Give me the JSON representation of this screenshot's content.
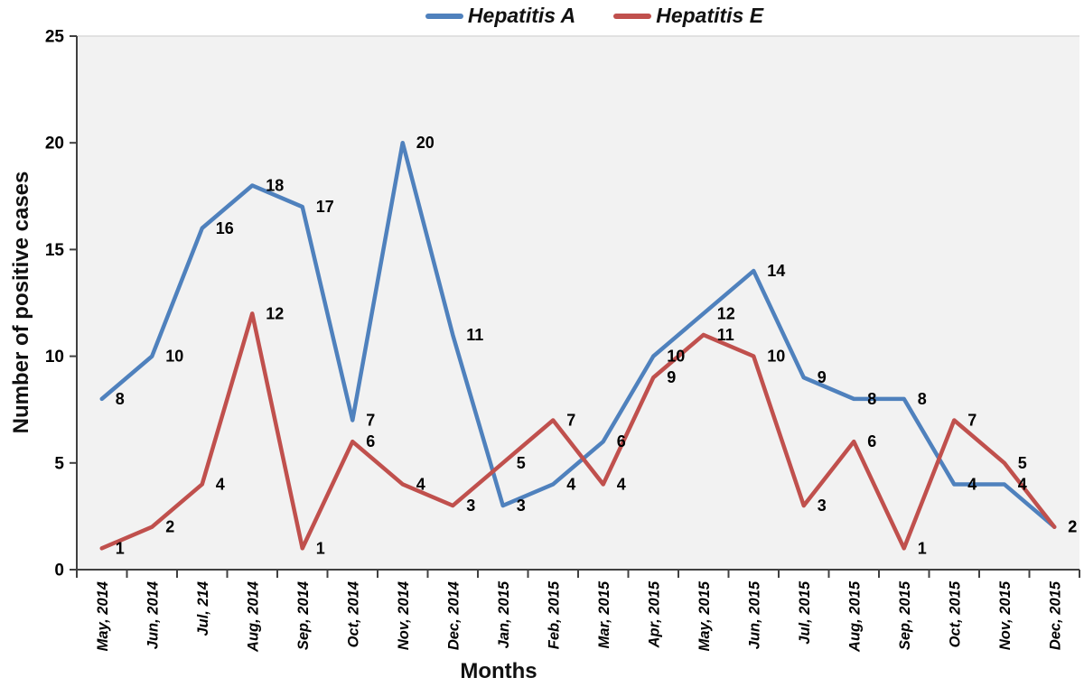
{
  "chart_data": {
    "type": "line",
    "title": "",
    "xlabel": "Months",
    "ylabel": "Number of positive cases",
    "categories": [
      "May, 2014",
      "Jun, 2014",
      "Jul, 214",
      "Aug, 2014",
      "Sep, 2014",
      "Oct, 2014",
      "Nov, 2014",
      "Dec, 2014",
      "Jan, 2015",
      "Feb, 2015",
      "Mar, 2015",
      "Apr, 2015",
      "May, 2015",
      "Jun, 2015",
      "Jul, 2015",
      "Aug, 2015",
      "Sep, 2015",
      "Oct, 2015",
      "Nov, 2015",
      "Dec, 2015"
    ],
    "series": [
      {
        "name": "Hepatitis A",
        "color": "#4F81BD",
        "values": [
          8,
          10,
          16,
          18,
          17,
          7,
          20,
          11,
          3,
          4,
          6,
          10,
          12,
          14,
          9,
          8,
          8,
          4,
          4,
          2
        ]
      },
      {
        "name": "Hepatitis E",
        "color": "#C0504D",
        "values": [
          1,
          2,
          4,
          12,
          1,
          6,
          4,
          3,
          5,
          7,
          4,
          9,
          11,
          10,
          3,
          6,
          1,
          7,
          5,
          2
        ]
      }
    ],
    "ylim": [
      0,
      25
    ],
    "yticks": [
      0,
      5,
      10,
      15,
      20,
      25
    ],
    "grid": false,
    "data_labels": true,
    "legend_position": "top",
    "plot_bg": "#F2F2F2",
    "axis_color": "#404040",
    "label_color": "#000000"
  }
}
